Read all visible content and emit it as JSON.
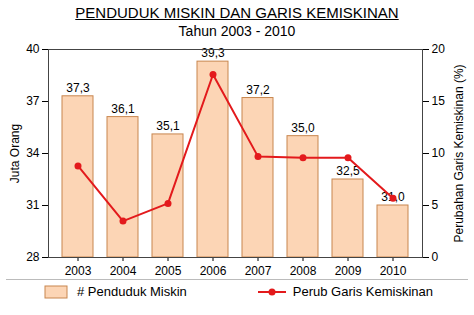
{
  "chart_data": {
    "type": "bar",
    "title": "PENDUDUK MISKIN DAN GARIS KEMISKINAN",
    "subtitle": "Tahun 2003 - 2010",
    "categories": [
      "2003",
      "2004",
      "2005",
      "2006",
      "2007",
      "2008",
      "2009",
      "2010"
    ],
    "ylabel": "Juta Orang",
    "y2label": "Perubahan Garis Kemiskinan (%)",
    "ylim": [
      28,
      40
    ],
    "yticks": [
      28,
      31,
      34,
      37,
      40
    ],
    "y2lim": [
      0,
      20
    ],
    "y2ticks": [
      0,
      5,
      10,
      15,
      20
    ],
    "grid": false,
    "legend": "bottom",
    "series": [
      {
        "name": "# Penduduk Miskin",
        "type": "bar",
        "color": "#fcd5b5",
        "values": [
          37.3,
          36.1,
          35.1,
          39.3,
          37.2,
          35.0,
          32.5,
          31.0
        ],
        "value_labels": [
          "37,3",
          "36,1",
          "35,1",
          "39,3",
          "37,2",
          "35,0",
          "32,5",
          "31,0"
        ],
        "data_labels": true
      },
      {
        "name": "Perub Garis Kemiskinan",
        "type": "line",
        "axis": "y2",
        "color": "#e31a1c",
        "marker": "circle",
        "values": [
          8.8,
          3.5,
          5.2,
          17.6,
          9.7,
          9.6,
          9.6,
          5.7
        ]
      }
    ]
  }
}
